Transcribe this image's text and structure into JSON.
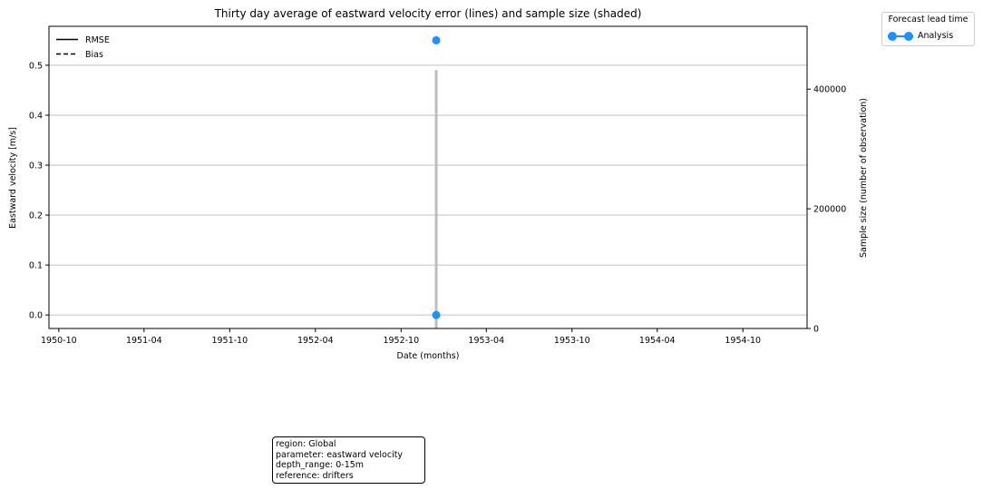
{
  "chart_data": {
    "type": "line",
    "title": "Thirty day average of eastward velocity error (lines) and sample size (shaded)",
    "xlabel": "Date (months)",
    "ylabel": "Eastward velocity [m/s]",
    "ylabel_right": "Sample size (number of observation)",
    "x_ticks": [
      "1950-10",
      "1951-04",
      "1951-10",
      "1952-04",
      "1952-10",
      "1953-04",
      "1953-10",
      "1954-04",
      "1954-10"
    ],
    "y_ticks": [
      "0.0",
      "0.1",
      "0.2",
      "0.3",
      "0.4",
      "0.5"
    ],
    "y_right_ticks": [
      "0",
      "200000",
      "400000"
    ],
    "ylim": [
      -0.027,
      0.578
    ],
    "ylim_right": [
      0,
      505000
    ],
    "xlim": [
      "1950-09-10",
      "1955-02-15"
    ],
    "grid": true,
    "line_style_legend": {
      "placement": "top-left",
      "entries": [
        {
          "label": "RMSE",
          "style": "solid"
        },
        {
          "label": "Bias",
          "style": "dashed"
        }
      ]
    },
    "series": [
      {
        "name": "Analysis",
        "color": "#1e90ff",
        "rmse": [
          {
            "x": "1952-12-15",
            "y": 0.55
          }
        ],
        "bias": [
          {
            "x": "1952-12-15",
            "y": 0.0
          }
        ],
        "sample_size": [
          {
            "x": "1952-12-15",
            "y": 432000
          }
        ]
      }
    ],
    "forecast_legend": {
      "title": "Forecast lead time",
      "entries": [
        {
          "label": "Analysis",
          "color": "#1e90ff"
        }
      ],
      "placement": "outside-top-right"
    }
  },
  "info_box": {
    "lines": [
      "region: Global",
      "parameter: eastward velocity",
      "depth_range: 0-15m",
      "reference: drifters"
    ]
  }
}
